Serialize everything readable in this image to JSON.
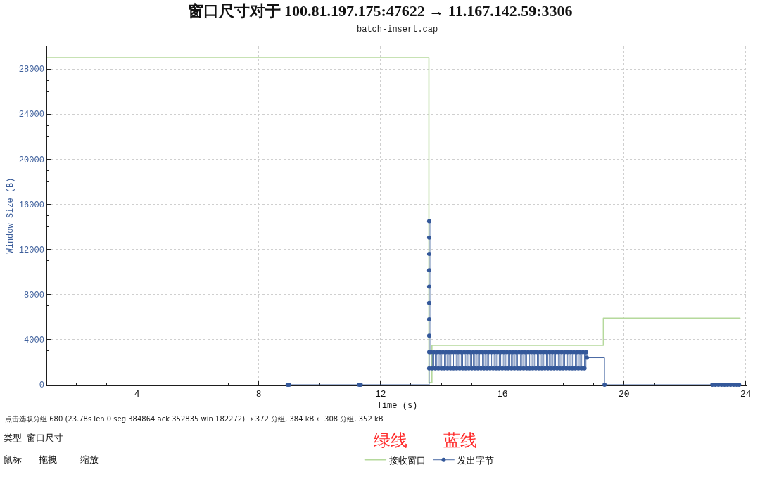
{
  "chart_data": {
    "type": "step",
    "title": "窗口尺寸对于 100.81.197.175:47622 → 11.167.142.59:3306",
    "subtitle": "batch-insert.cap",
    "xlabel": "Time (s)",
    "ylabel": "Window Size (B)",
    "xlim": [
      1.05,
      24.05
    ],
    "ylim": [
      0,
      30000
    ],
    "xticks": [
      {
        "value": 2,
        "label": null
      },
      {
        "value": 3,
        "label": null
      },
      4,
      {
        "value": 5,
        "label": null
      },
      {
        "value": 6,
        "label": null
      },
      {
        "value": 7,
        "label": null
      },
      8,
      {
        "value": 9,
        "label": null
      },
      {
        "value": 10,
        "label": null
      },
      {
        "value": 11,
        "label": null
      },
      12,
      {
        "value": 13,
        "label": null
      },
      {
        "value": 14,
        "label": null
      },
      {
        "value": 15,
        "label": null
      },
      16,
      {
        "value": 17,
        "label": null
      },
      {
        "value": 18,
        "label": null
      },
      {
        "value": 19,
        "label": null
      },
      20,
      {
        "value": 21,
        "label": null
      },
      {
        "value": 22,
        "label": null
      },
      {
        "value": 23,
        "label": null
      },
      24
    ],
    "yticks": [
      0,
      {
        "value": 1000,
        "label": null
      },
      {
        "value": 2000,
        "label": null
      },
      {
        "value": 3000,
        "label": null
      },
      4000,
      {
        "value": 5000,
        "label": null
      },
      {
        "value": 6000,
        "label": null
      },
      {
        "value": 7000,
        "label": null
      },
      8000,
      {
        "value": 9000,
        "label": null
      },
      {
        "value": 10000,
        "label": null
      },
      {
        "value": 11000,
        "label": null
      },
      12000,
      {
        "value": 13000,
        "label": null
      },
      {
        "value": 14000,
        "label": null
      },
      {
        "value": 15000,
        "label": null
      },
      16000,
      {
        "value": 17000,
        "label": null
      },
      {
        "value": 18000,
        "label": null
      },
      {
        "value": 19000,
        "label": null
      },
      20000,
      {
        "value": 21000,
        "label": null
      },
      {
        "value": 22000,
        "label": null
      },
      {
        "value": 23000,
        "label": null
      },
      24000,
      {
        "value": 25000,
        "label": null
      },
      {
        "value": 26000,
        "label": null
      },
      {
        "value": 27000,
        "label": null
      },
      28000,
      {
        "value": 29000,
        "label": null
      }
    ],
    "grid": true,
    "legend": "bottom",
    "line_style": "solid",
    "series": [
      {
        "name": "接收窗口",
        "color": "#b5d99c",
        "marker": "none",
        "x": [
          1.05,
          13.59,
          13.69,
          19.32,
          23.81
        ],
        "values": [
          29000,
          200,
          3500,
          5900,
          5900
        ]
      },
      {
        "name": "发出字节",
        "color": "#34589a",
        "marker": "circle",
        "x": [
          8.95,
          9.0,
          11.3,
          11.35,
          13.6,
          13.6,
          13.6,
          13.6,
          13.6,
          13.6,
          13.6,
          13.6,
          13.6,
          13.6,
          13.65,
          13.7,
          13.75,
          13.8,
          13.85,
          13.9,
          13.95,
          14.0,
          14.05,
          14.1,
          14.15,
          14.2,
          14.25,
          14.3,
          14.35,
          14.4,
          14.45,
          14.5,
          14.55,
          14.6,
          14.65,
          14.7,
          14.75,
          14.8,
          14.85,
          14.9,
          14.95,
          15.0,
          15.05,
          15.1,
          15.15,
          15.2,
          15.25,
          15.3,
          15.35,
          15.4,
          15.45,
          15.5,
          15.55,
          15.6,
          15.65,
          15.7,
          15.75,
          15.8,
          15.85,
          15.9,
          15.95,
          16.0,
          16.05,
          16.1,
          16.15,
          16.2,
          16.25,
          16.3,
          16.35,
          16.4,
          16.45,
          16.5,
          16.55,
          16.6,
          16.65,
          16.7,
          16.75,
          16.8,
          16.85,
          16.9,
          16.95,
          17.0,
          17.05,
          17.1,
          17.15,
          17.2,
          17.25,
          17.3,
          17.35,
          17.4,
          17.45,
          17.5,
          17.55,
          17.6,
          17.65,
          17.7,
          17.75,
          17.8,
          17.85,
          17.9,
          17.95,
          18.0,
          18.05,
          18.1,
          18.15,
          18.2,
          18.25,
          18.3,
          18.35,
          18.4,
          18.45,
          18.5,
          18.55,
          18.6,
          18.65,
          18.7,
          18.75,
          18.78,
          19.36,
          22.9,
          23.0,
          23.1,
          23.2,
          23.3,
          23.4,
          23.5,
          23.6,
          23.7,
          23.78
        ],
        "values": [
          0,
          0,
          0,
          0,
          1450,
          2900,
          4350,
          5800,
          7250,
          8700,
          10150,
          11600,
          13050,
          14500,
          2900,
          1450,
          2900,
          1450,
          2900,
          1450,
          2900,
          1450,
          2900,
          1450,
          2900,
          1450,
          2900,
          1450,
          2900,
          1450,
          2900,
          1450,
          2900,
          1450,
          2900,
          1450,
          2900,
          1450,
          2900,
          1450,
          2900,
          1450,
          2900,
          1450,
          2900,
          1450,
          2900,
          1450,
          2900,
          1450,
          2900,
          1450,
          2900,
          1450,
          2900,
          1450,
          2900,
          1450,
          2900,
          1450,
          2900,
          1450,
          2900,
          1450,
          2900,
          1450,
          2900,
          1450,
          2900,
          1450,
          2900,
          1450,
          2900,
          1450,
          2900,
          1450,
          2900,
          1450,
          2900,
          1450,
          2900,
          1450,
          2900,
          1450,
          2900,
          1450,
          2900,
          1450,
          2900,
          1450,
          2900,
          1450,
          2900,
          1450,
          2900,
          1450,
          2900,
          1450,
          2900,
          1450,
          2900,
          1450,
          2900,
          1450,
          2900,
          1450,
          2900,
          1450,
          2900,
          1450,
          2900,
          1450,
          2900,
          1450,
          2900,
          1450,
          2900,
          2400,
          0,
          0,
          0,
          0,
          0,
          0,
          0,
          0,
          0,
          0,
          0
        ]
      }
    ],
    "annotations": [
      "点击选取分组 680 (23.78s len 0 seg 384864 ack 352835 win 182272) → 372 分组, 384 kB ← 308 分组, 352 kB",
      "类型",
      "窗口尺寸",
      "绿线",
      "蓝线",
      "鼠标",
      "拖拽",
      "缩放"
    ]
  }
}
